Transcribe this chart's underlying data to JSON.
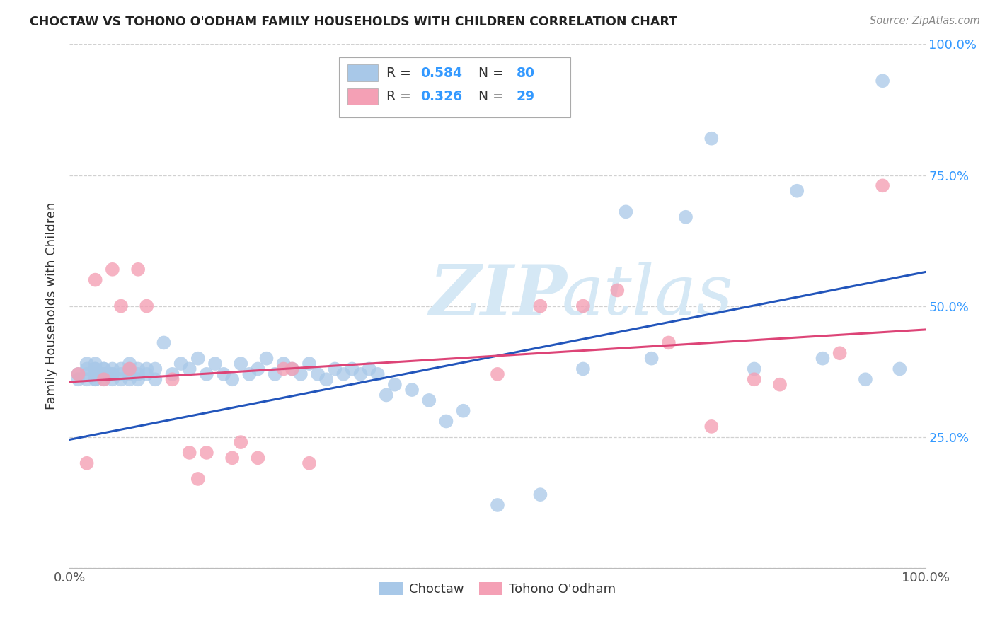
{
  "title": "CHOCTAW VS TOHONO O'ODHAM FAMILY HOUSEHOLDS WITH CHILDREN CORRELATION CHART",
  "source": "Source: ZipAtlas.com",
  "ylabel": "Family Households with Children",
  "xlim": [
    0,
    1
  ],
  "ylim": [
    0,
    1
  ],
  "blue_color": "#a8c8e8",
  "pink_color": "#f4a0b5",
  "blue_line_color": "#2255bb",
  "pink_line_color": "#dd4477",
  "legend_R_blue": "0.584",
  "legend_N_blue": "80",
  "legend_R_pink": "0.326",
  "legend_N_pink": "29",
  "legend_text_color": "#333333",
  "legend_num_color": "#3399ff",
  "background_color": "#ffffff",
  "grid_color": "#cccccc",
  "watermark_color": "#d5e8f5",
  "blue_trend_y0": 0.245,
  "blue_trend_y1": 0.565,
  "pink_trend_y0": 0.355,
  "pink_trend_y1": 0.455,
  "blue_x": [
    0.01,
    0.01,
    0.02,
    0.02,
    0.02,
    0.02,
    0.03,
    0.03,
    0.03,
    0.03,
    0.03,
    0.03,
    0.04,
    0.04,
    0.04,
    0.04,
    0.04,
    0.05,
    0.05,
    0.05,
    0.05,
    0.06,
    0.06,
    0.06,
    0.07,
    0.07,
    0.07,
    0.07,
    0.08,
    0.08,
    0.08,
    0.09,
    0.09,
    0.1,
    0.1,
    0.11,
    0.12,
    0.13,
    0.14,
    0.15,
    0.16,
    0.17,
    0.18,
    0.19,
    0.2,
    0.21,
    0.22,
    0.23,
    0.24,
    0.25,
    0.26,
    0.27,
    0.28,
    0.29,
    0.3,
    0.31,
    0.32,
    0.33,
    0.34,
    0.35,
    0.36,
    0.37,
    0.38,
    0.4,
    0.42,
    0.44,
    0.46,
    0.5,
    0.55,
    0.6,
    0.65,
    0.68,
    0.72,
    0.75,
    0.8,
    0.85,
    0.88,
    0.93,
    0.95,
    0.97
  ],
  "blue_y": [
    0.37,
    0.36,
    0.39,
    0.37,
    0.36,
    0.38,
    0.38,
    0.36,
    0.37,
    0.39,
    0.38,
    0.36,
    0.37,
    0.38,
    0.37,
    0.36,
    0.38,
    0.37,
    0.38,
    0.37,
    0.36,
    0.37,
    0.38,
    0.36,
    0.37,
    0.39,
    0.38,
    0.36,
    0.37,
    0.38,
    0.36,
    0.37,
    0.38,
    0.36,
    0.38,
    0.43,
    0.37,
    0.39,
    0.38,
    0.4,
    0.37,
    0.39,
    0.37,
    0.36,
    0.39,
    0.37,
    0.38,
    0.4,
    0.37,
    0.39,
    0.38,
    0.37,
    0.39,
    0.37,
    0.36,
    0.38,
    0.37,
    0.38,
    0.37,
    0.38,
    0.37,
    0.33,
    0.35,
    0.34,
    0.32,
    0.28,
    0.3,
    0.12,
    0.14,
    0.38,
    0.68,
    0.4,
    0.67,
    0.82,
    0.38,
    0.72,
    0.4,
    0.36,
    0.93,
    0.38
  ],
  "pink_x": [
    0.01,
    0.02,
    0.03,
    0.04,
    0.05,
    0.06,
    0.07,
    0.08,
    0.09,
    0.12,
    0.14,
    0.16,
    0.19,
    0.22,
    0.25,
    0.26,
    0.5,
    0.55,
    0.6,
    0.64,
    0.7,
    0.75,
    0.8,
    0.83,
    0.9,
    0.95,
    0.15,
    0.2,
    0.28
  ],
  "pink_y": [
    0.37,
    0.2,
    0.55,
    0.36,
    0.57,
    0.5,
    0.38,
    0.57,
    0.5,
    0.36,
    0.22,
    0.22,
    0.21,
    0.21,
    0.38,
    0.38,
    0.37,
    0.5,
    0.5,
    0.53,
    0.43,
    0.27,
    0.36,
    0.35,
    0.41,
    0.73,
    0.17,
    0.24,
    0.2
  ]
}
